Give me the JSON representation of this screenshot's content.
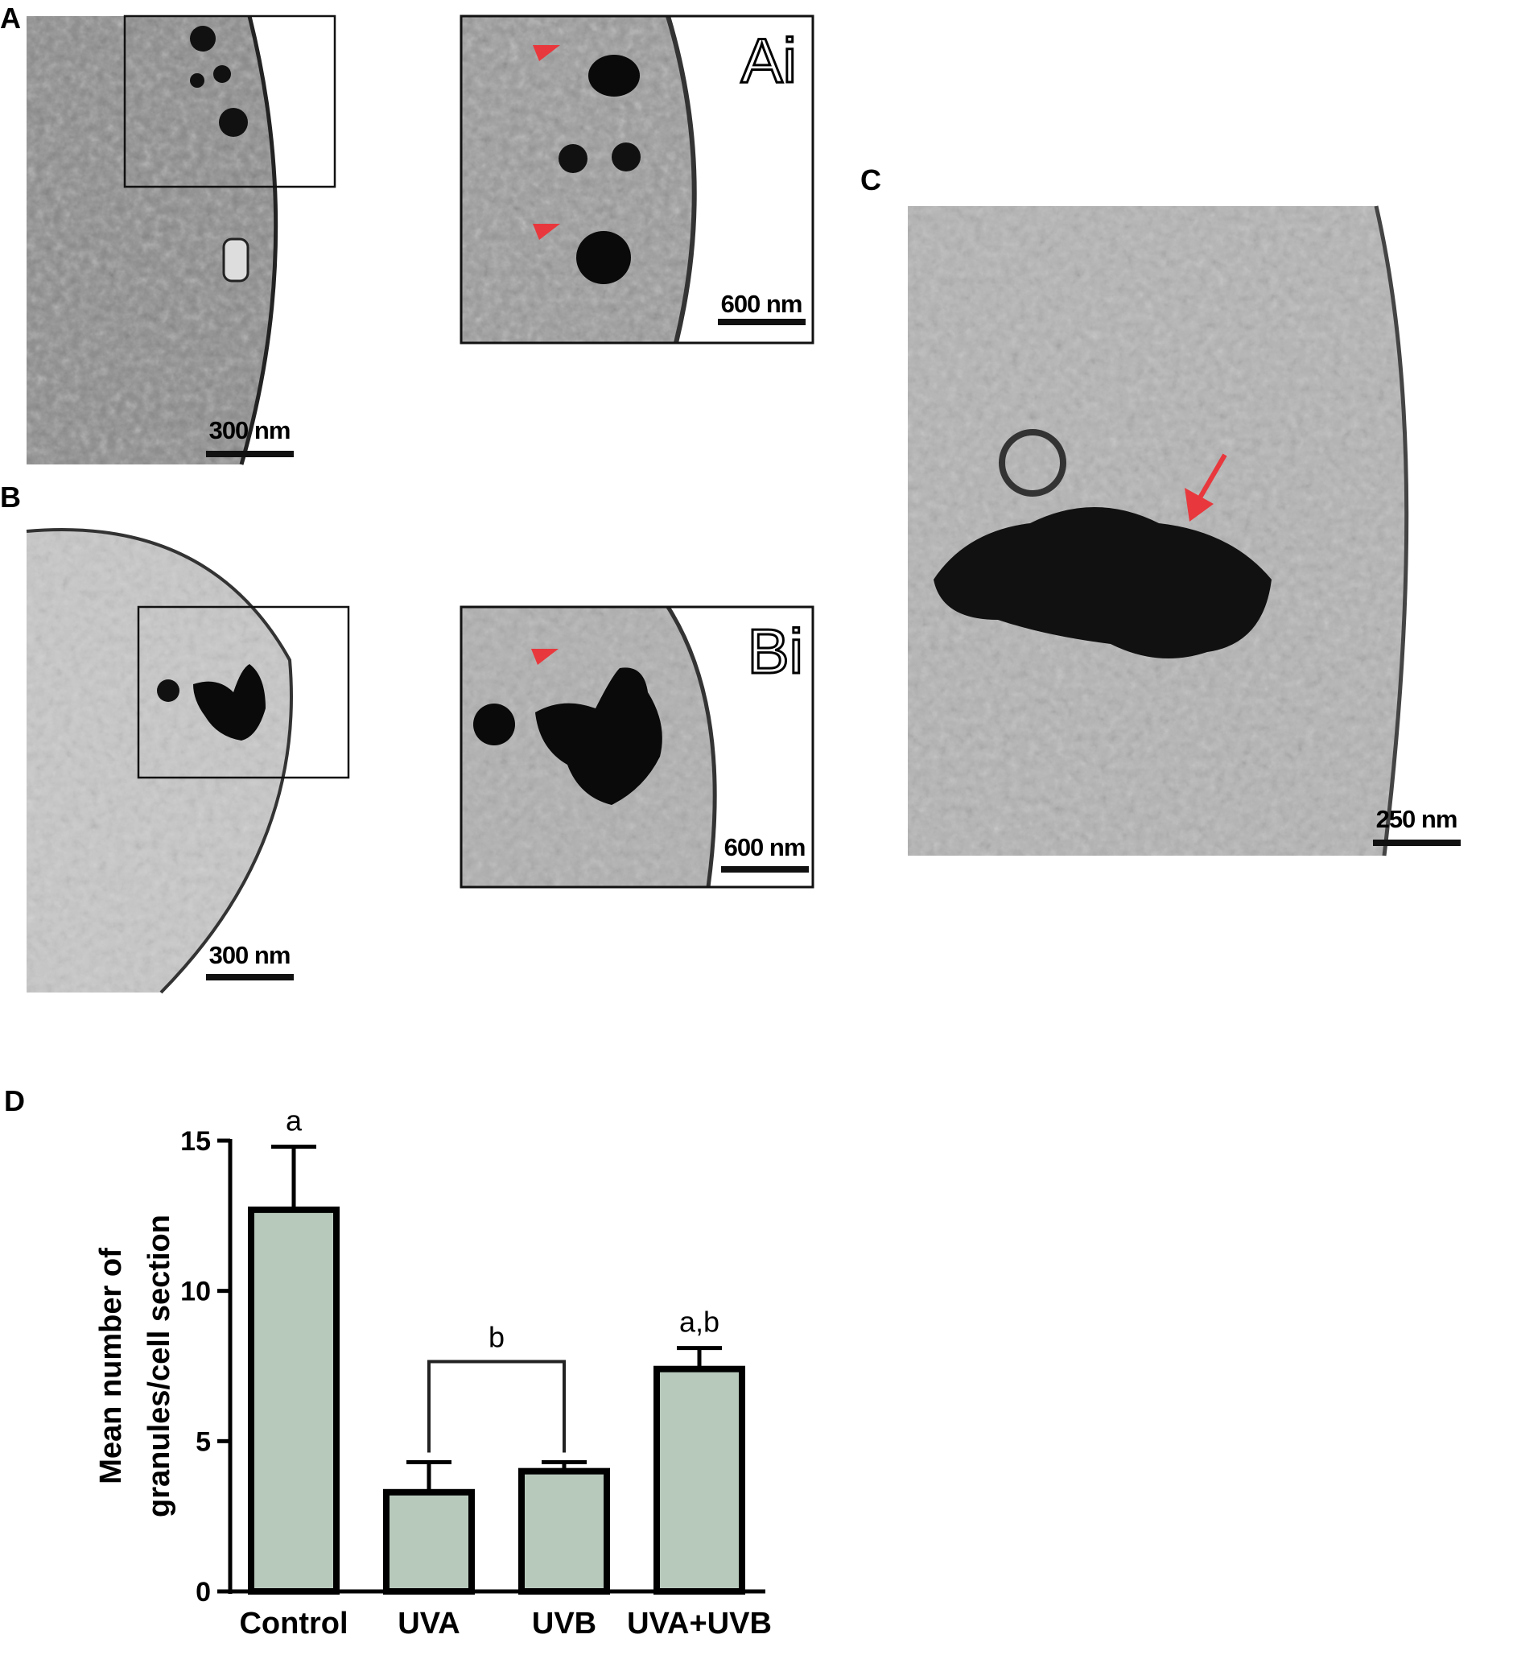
{
  "panels": {
    "a": {
      "label": "A",
      "scale_bar": "300 nm"
    },
    "ai": {
      "label": "Ai",
      "scale_bar": "600 nm"
    },
    "b": {
      "label": "B",
      "scale_bar": "300 nm"
    },
    "bi": {
      "label": "Bi",
      "scale_bar": "600 nm"
    },
    "c": {
      "label": "C",
      "scale_bar": "250 nm"
    },
    "d": {
      "label": "D"
    }
  },
  "chart_data": {
    "type": "bar",
    "ylabel": [
      "Mean number of",
      "granules/cell section"
    ],
    "categories": [
      "Control",
      "UVA",
      "UVB",
      "UVA+UVB"
    ],
    "values": [
      12.7,
      3.3,
      4.0,
      7.4
    ],
    "errors": [
      2.1,
      1.0,
      0.3,
      0.7
    ],
    "color": "#b7c9bb",
    "ylim": [
      0,
      15
    ],
    "yticks": [
      0,
      5,
      10,
      15
    ],
    "annotations": [
      {
        "text": "a",
        "over": [
          "Control"
        ]
      },
      {
        "text": "b",
        "over": [
          "UVA",
          "UVB"
        ]
      },
      {
        "text": "a,b",
        "over": [
          "UVA+UVB"
        ]
      }
    ]
  }
}
